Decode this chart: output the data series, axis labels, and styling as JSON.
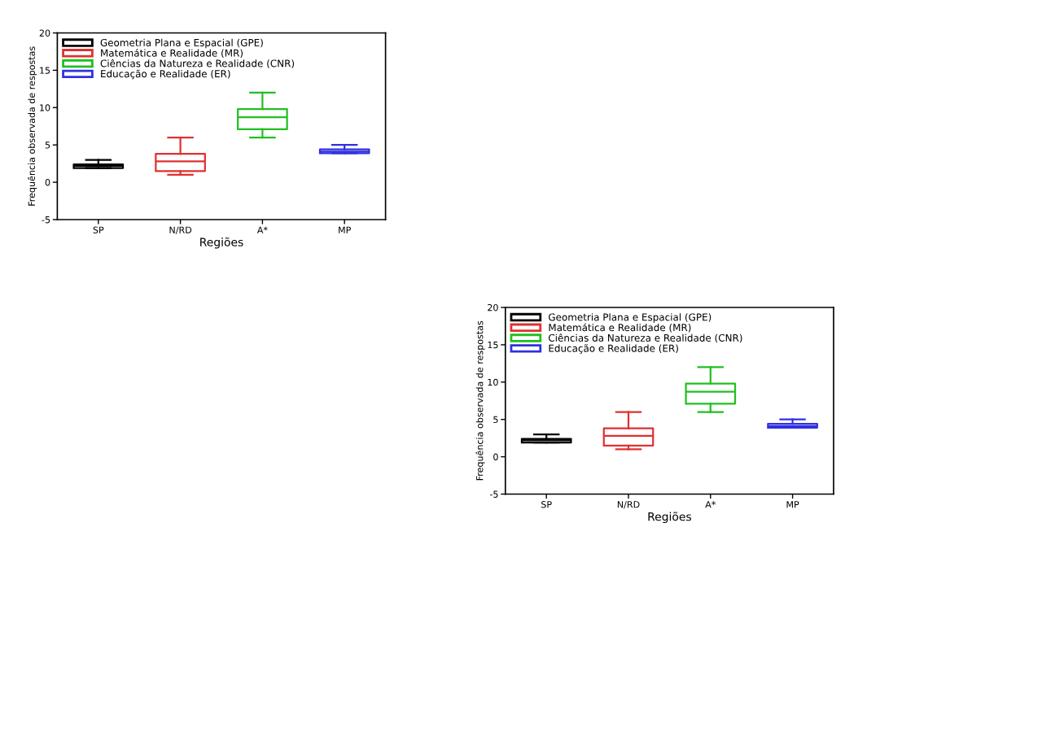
{
  "chart_data": [
    {
      "type": "box",
      "categories": [
        "SP",
        "N/RD",
        "A*",
        "MP"
      ],
      "xlabel": "Regiões",
      "ylabel": "Frequência observada de respostas",
      "ylim": [
        -5,
        20
      ],
      "yticks": [
        -5,
        0,
        5,
        10,
        15,
        20
      ],
      "grid": false,
      "legend": "top left",
      "series": [
        {
          "name": "Geometria Plana e Espacial (GPE)",
          "color": "#000000",
          "boxes": [
            {
              "low": 1.9,
              "q1": 1.9,
              "median": 2.2,
              "q3": 2.4,
              "high": 3.0
            },
            null,
            null,
            null
          ]
        },
        {
          "name": "Matemática e Realidade (MR)",
          "color": "#e03030",
          "boxes": [
            null,
            {
              "low": 1.0,
              "q1": 1.5,
              "median": 2.8,
              "q3": 3.8,
              "high": 6.0
            },
            null,
            null
          ]
        },
        {
          "name": "Ciências da Natureza e Realidade (CNR)",
          "color": "#20c020",
          "boxes": [
            null,
            null,
            {
              "low": 6.0,
              "q1": 7.1,
              "median": 8.7,
              "q3": 9.8,
              "high": 12.0
            },
            null
          ]
        },
        {
          "name": "Educação e Realidade (ER)",
          "color": "#3030e0",
          "boxes": [
            null,
            null,
            null,
            {
              "low": 3.9,
              "q1": 3.9,
              "median": 4.1,
              "q3": 4.4,
              "high": 5.0
            }
          ]
        }
      ]
    },
    {
      "type": "box",
      "categories": [
        "SP",
        "N/RD",
        "A*",
        "MP"
      ],
      "xlabel": "Regiões",
      "ylabel": "Frequência observada de respostas",
      "ylim": [
        -5,
        20
      ],
      "yticks": [
        -5,
        0,
        5,
        10,
        15,
        20
      ],
      "grid": false,
      "legend": "top left",
      "series": [
        {
          "name": "Geometria Plana e Espacial (GPE)",
          "color": "#000000",
          "boxes": [
            {
              "low": 1.9,
              "q1": 1.9,
              "median": 2.2,
              "q3": 2.4,
              "high": 3.0
            },
            null,
            null,
            null
          ]
        },
        {
          "name": "Matemática e Realidade (MR)",
          "color": "#e03030",
          "boxes": [
            null,
            {
              "low": 1.0,
              "q1": 1.5,
              "median": 2.8,
              "q3": 3.8,
              "high": 6.0
            },
            null,
            null
          ]
        },
        {
          "name": "Ciências da Natureza e Realidade (CNR)",
          "color": "#20c020",
          "boxes": [
            null,
            null,
            {
              "low": 6.0,
              "q1": 7.1,
              "median": 8.7,
              "q3": 9.8,
              "high": 12.0
            },
            null
          ]
        },
        {
          "name": "Educação e Realidade (ER)",
          "color": "#3030e0",
          "boxes": [
            null,
            null,
            null,
            {
              "low": 3.9,
              "q1": 3.9,
              "median": 4.1,
              "q3": 4.4,
              "high": 5.0
            }
          ]
        }
      ]
    }
  ]
}
